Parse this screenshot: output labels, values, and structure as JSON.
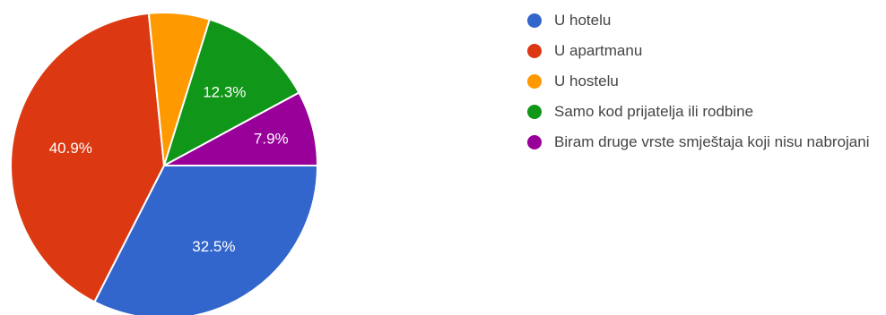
{
  "chart_data": {
    "type": "pie",
    "slices": [
      {
        "label": "U hotelu",
        "value": 32.5,
        "color": "#3366cc",
        "display": "32.5%"
      },
      {
        "label": "U apartmanu",
        "value": 40.9,
        "color": "#dc3912",
        "display": "40.9%"
      },
      {
        "label": "U hostelu",
        "value": 6.4,
        "color": "#ff9900",
        "display": ""
      },
      {
        "label": "Samo kod prijatelja ili rodbine",
        "value": 12.3,
        "color": "#109618",
        "display": "12.3%"
      },
      {
        "label": "Biram druge vrste smještaja koji nisu nabrojani",
        "value": 7.9,
        "color": "#990099",
        "display": "7.9%"
      }
    ],
    "legend_position": "right"
  }
}
